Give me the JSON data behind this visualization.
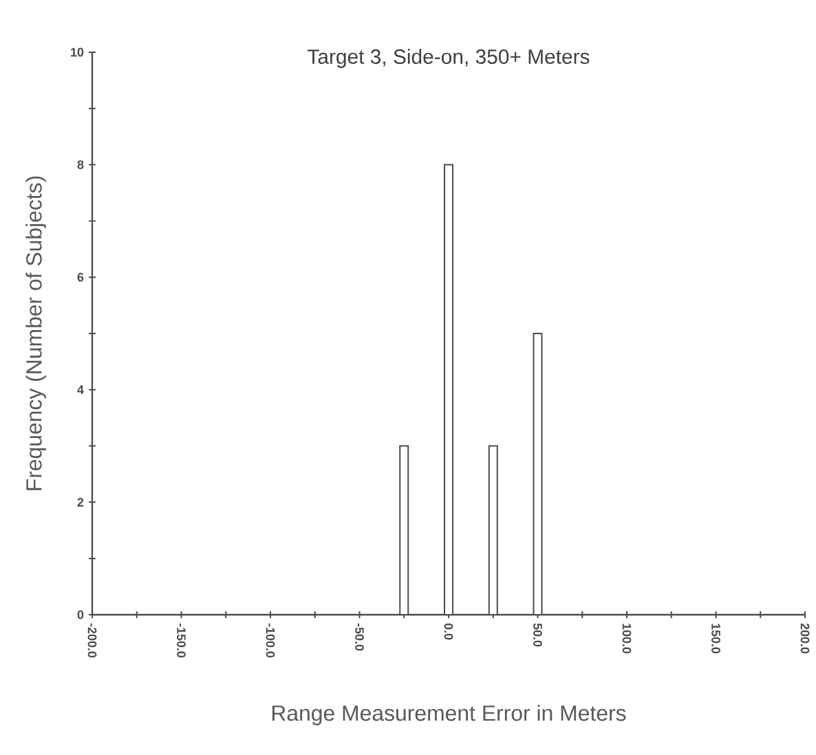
{
  "chart_data": {
    "type": "bar",
    "title": "Target 3, Side-on, 350+ Meters",
    "xlabel": "Range Measurement Error in Meters",
    "ylabel": "Frequency (Number of Subjects)",
    "x": [
      -25,
      0,
      25,
      50
    ],
    "values": [
      3,
      8,
      3,
      5
    ],
    "color": "#ffffff",
    "xlim": [
      -200,
      200
    ],
    "xticks": [
      {
        "value": -200,
        "label": "-200.0"
      },
      {
        "value": -175,
        "label": null
      },
      {
        "value": -150,
        "label": "-150.0"
      },
      {
        "value": -125,
        "label": null
      },
      {
        "value": -100,
        "label": "-100.0"
      },
      {
        "value": -75,
        "label": null
      },
      {
        "value": -50,
        "label": "-50.0"
      },
      {
        "value": -25,
        "label": null
      },
      {
        "value": 0,
        "label": "0.0"
      },
      {
        "value": 25,
        "label": null
      },
      {
        "value": 50,
        "label": "50.0"
      },
      {
        "value": 75,
        "label": null
      },
      {
        "value": 100,
        "label": "100.0"
      },
      {
        "value": 125,
        "label": null
      },
      {
        "value": 150,
        "label": "150.0"
      },
      {
        "value": 175,
        "label": null
      },
      {
        "value": 200,
        "label": "200.0"
      }
    ],
    "ylim": [
      0,
      10
    ],
    "yticks": [
      0,
      {
        "value": 1,
        "label": null
      },
      2,
      {
        "value": 3,
        "label": null
      },
      4,
      {
        "value": 5,
        "label": null
      },
      6,
      {
        "value": 7,
        "label": null
      },
      8,
      {
        "value": 9,
        "label": null
      },
      10
    ],
    "grid": false
  }
}
